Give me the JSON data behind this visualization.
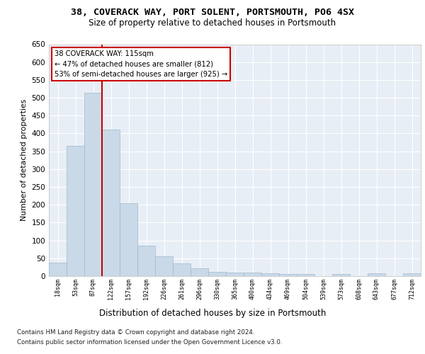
{
  "title1": "38, COVERACK WAY, PORT SOLENT, PORTSMOUTH, PO6 4SX",
  "title2": "Size of property relative to detached houses in Portsmouth",
  "xlabel": "Distribution of detached houses by size in Portsmouth",
  "ylabel": "Number of detached properties",
  "bar_values": [
    38,
    365,
    515,
    410,
    205,
    85,
    55,
    35,
    22,
    12,
    10,
    10,
    8,
    5,
    5,
    0,
    5,
    0,
    7,
    0,
    7
  ],
  "x_labels": [
    "18sqm",
    "53sqm",
    "87sqm",
    "122sqm",
    "157sqm",
    "192sqm",
    "226sqm",
    "261sqm",
    "296sqm",
    "330sqm",
    "365sqm",
    "400sqm",
    "434sqm",
    "469sqm",
    "504sqm",
    "539sqm",
    "573sqm",
    "608sqm",
    "643sqm",
    "677sqm",
    "712sqm"
  ],
  "bar_color": "#c9d9e8",
  "bar_edgecolor": "#a0b8cc",
  "vline_x": 2.5,
  "vline_color": "#cc0000",
  "annotation_text": "38 COVERACK WAY: 115sqm\n← 47% of detached houses are smaller (812)\n53% of semi-detached houses are larger (925) →",
  "annotation_box_facecolor": "white",
  "annotation_box_edgecolor": "#cc0000",
  "ylim": [
    0,
    650
  ],
  "yticks": [
    0,
    50,
    100,
    150,
    200,
    250,
    300,
    350,
    400,
    450,
    500,
    550,
    600,
    650
  ],
  "plot_background": "#e8eef6",
  "grid_color": "white",
  "footer1": "Contains HM Land Registry data © Crown copyright and database right 2024.",
  "footer2": "Contains public sector information licensed under the Open Government Licence v3.0."
}
